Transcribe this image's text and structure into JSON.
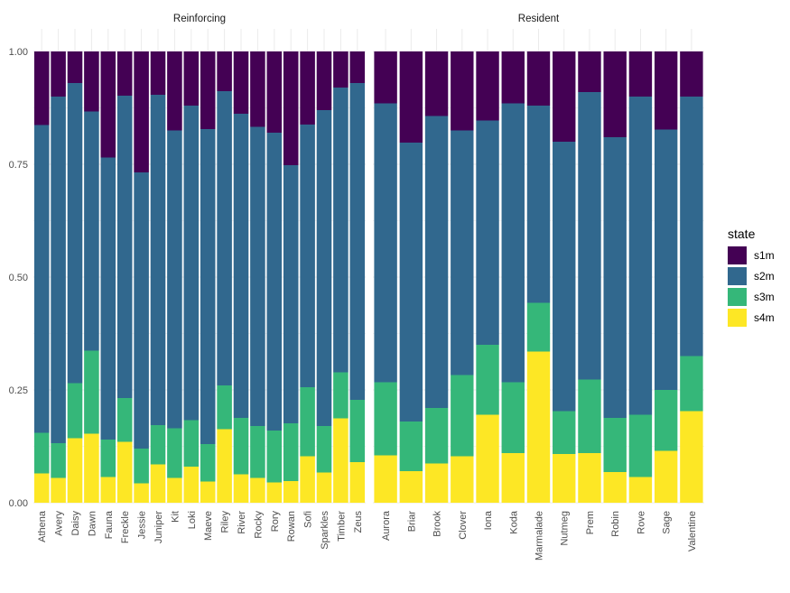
{
  "chart_data": {
    "type": "bar",
    "stacked": true,
    "ylim": [
      0,
      1
    ],
    "yticks": [
      "0.00",
      "0.25",
      "0.50",
      "0.75",
      "1.00"
    ],
    "ytick_values": [
      0,
      0.25,
      0.5,
      0.75,
      1.0
    ],
    "grid": true,
    "legend": {
      "title": "state",
      "position": "right",
      "entries": [
        "s1m",
        "s2m",
        "s3m",
        "s4m"
      ]
    },
    "colors": {
      "s1m": "#440154",
      "s2m": "#31688e",
      "s3m": "#35b779",
      "s4m": "#fde725"
    },
    "facets": [
      {
        "label": "Reinforcing",
        "categories": [
          "Athena",
          "Avery",
          "Daisy",
          "Dawn",
          "Fauna",
          "Freckle",
          "Jessie",
          "Juniper",
          "Kit",
          "Loki",
          "Maeve",
          "Riley",
          "River",
          "Rocky",
          "Rory",
          "Rowan",
          "Sofi",
          "Sparkles",
          "Timber",
          "Zeus"
        ],
        "series": [
          {
            "name": "s4m",
            "values": [
              0.065,
              0.055,
              0.143,
              0.153,
              0.057,
              0.135,
              0.043,
              0.085,
              0.055,
              0.08,
              0.047,
              0.163,
              0.063,
              0.055,
              0.045,
              0.048,
              0.103,
              0.067,
              0.187,
              0.09
            ]
          },
          {
            "name": "s3m",
            "values": [
              0.09,
              0.077,
              0.122,
              0.184,
              0.083,
              0.097,
              0.077,
              0.087,
              0.11,
              0.103,
              0.083,
              0.097,
              0.125,
              0.115,
              0.115,
              0.128,
              0.153,
              0.103,
              0.102,
              0.138
            ]
          },
          {
            "name": "s2m",
            "values": [
              0.682,
              0.768,
              0.665,
              0.53,
              0.625,
              0.67,
              0.612,
              0.732,
              0.66,
              0.697,
              0.698,
              0.652,
              0.674,
              0.663,
              0.66,
              0.572,
              0.582,
              0.7,
              0.631,
              0.702
            ]
          },
          {
            "name": "s1m",
            "values": [
              0.163,
              0.1,
              0.07,
              0.133,
              0.235,
              0.098,
              0.268,
              0.096,
              0.175,
              0.12,
              0.172,
              0.088,
              0.138,
              0.167,
              0.18,
              0.252,
              0.162,
              0.13,
              0.08,
              0.07
            ]
          }
        ]
      },
      {
        "label": "Resident",
        "categories": [
          "Aurora",
          "Briar",
          "Brook",
          "Clover",
          "Iona",
          "Koda",
          "Marmalade",
          "Nutmeg",
          "Prem",
          "Robin",
          "Rove",
          "Sage",
          "Valentine"
        ],
        "series": [
          {
            "name": "s4m",
            "values": [
              0.105,
              0.07,
              0.087,
              0.103,
              0.195,
              0.11,
              0.335,
              0.108,
              0.11,
              0.068,
              0.057,
              0.115,
              0.203
            ]
          },
          {
            "name": "s3m",
            "values": [
              0.162,
              0.11,
              0.123,
              0.18,
              0.155,
              0.157,
              0.108,
              0.095,
              0.163,
              0.12,
              0.138,
              0.135,
              0.122
            ]
          },
          {
            "name": "s2m",
            "values": [
              0.618,
              0.618,
              0.647,
              0.542,
              0.497,
              0.618,
              0.437,
              0.597,
              0.637,
              0.622,
              0.705,
              0.577,
              0.575
            ]
          },
          {
            "name": "s1m",
            "values": [
              0.115,
              0.202,
              0.143,
              0.175,
              0.153,
              0.115,
              0.12,
              0.2,
              0.09,
              0.19,
              0.1,
              0.173,
              0.1
            ]
          }
        ]
      }
    ]
  }
}
